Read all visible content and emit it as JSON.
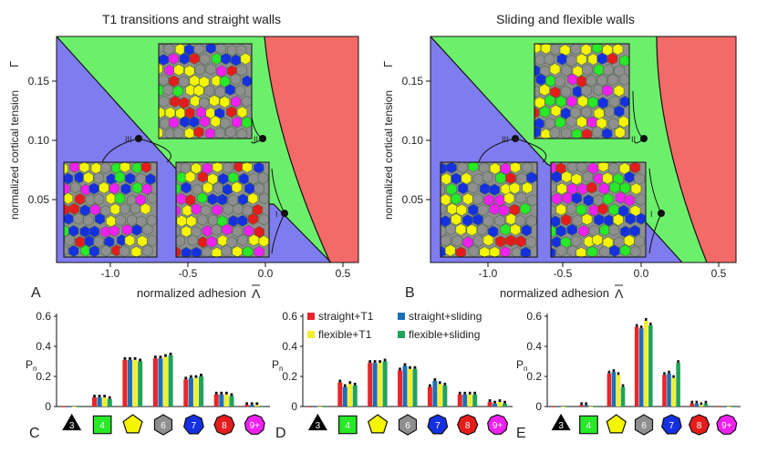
{
  "panels": {
    "A": {
      "title": "T1 transitions and straight walls",
      "letter": "A",
      "xlabel": "normalized adhesion",
      "xsymbol": "Λ",
      "ylabel": "normalized cortical tension",
      "ysymbol": "Γ",
      "xticks": [
        "-1.0",
        "-0.5",
        "0.0",
        "0.5"
      ],
      "yticks": [
        "0.15",
        "0.10",
        "0.05"
      ],
      "markers": [
        "III",
        "II",
        "I"
      ]
    },
    "B": {
      "title": "Sliding and flexible walls",
      "letter": "B",
      "xlabel": "normalized adhesion",
      "xsymbol": "Λ",
      "ylabel": "normalized cortical tension",
      "ysymbol": "Γ",
      "xticks": [
        "-1.0",
        "-0.5",
        "0.0",
        "0.5"
      ],
      "yticks": [
        "0.15",
        "0.10",
        "0.05"
      ],
      "markers": [
        "III",
        "II",
        "I"
      ]
    }
  },
  "colors": {
    "blue_region": "#7f7cf0",
    "green_region": "#6cf06c",
    "red_region": "#f46a68",
    "cell_gray": "#8f8f8f",
    "cell_yellow": "#f5f500",
    "cell_blue": "#1530e0",
    "cell_red": "#e51c1c",
    "cell_green": "#27e927",
    "cell_magenta": "#f020f0",
    "bar_red": "#e8262a",
    "bar_blue": "#1f6fb5",
    "bar_yellow": "#f3ee2f",
    "bar_green": "#21a35a"
  },
  "legend": [
    "straight+T1",
    "straight+sliding",
    "flexible+T1",
    "flexible+sliding"
  ],
  "polygon_labels": [
    "3",
    "4",
    "",
    "6",
    "7",
    "8",
    "9+"
  ],
  "chart_data": [
    {
      "type": "bar",
      "panel": "C",
      "ylabel": "Pn",
      "ylim": [
        0,
        0.6
      ],
      "yticks": [
        "0.6",
        "0.4",
        "0.2",
        "0"
      ],
      "categories": [
        "3",
        "4",
        "5",
        "6",
        "7",
        "8",
        "9+"
      ],
      "series": [
        {
          "name": "straight+T1",
          "values": [
            0.0,
            0.06,
            0.31,
            0.32,
            0.18,
            0.08,
            0.01
          ]
        },
        {
          "name": "straight+sliding",
          "values": [
            0.0,
            0.06,
            0.31,
            0.32,
            0.19,
            0.08,
            0.01
          ]
        },
        {
          "name": "flexible+T1",
          "values": [
            0.0,
            0.06,
            0.31,
            0.33,
            0.19,
            0.08,
            0.01
          ]
        },
        {
          "name": "flexible+sliding",
          "values": [
            0.0,
            0.05,
            0.3,
            0.34,
            0.2,
            0.07,
            0.0
          ]
        }
      ]
    },
    {
      "type": "bar",
      "panel": "D",
      "ylabel": "Pn",
      "ylim": [
        0,
        0.6
      ],
      "yticks": [
        "0.6",
        "0.4",
        "0.2",
        "0"
      ],
      "categories": [
        "3",
        "4",
        "5",
        "6",
        "7",
        "8",
        "9+"
      ],
      "series": [
        {
          "name": "straight+T1",
          "values": [
            0.0,
            0.16,
            0.29,
            0.24,
            0.13,
            0.08,
            0.03
          ]
        },
        {
          "name": "straight+sliding",
          "values": [
            0.0,
            0.13,
            0.29,
            0.27,
            0.17,
            0.08,
            0.02
          ]
        },
        {
          "name": "flexible+T1",
          "values": [
            0.0,
            0.15,
            0.29,
            0.25,
            0.15,
            0.08,
            0.03
          ]
        },
        {
          "name": "flexible+sliding",
          "values": [
            0.0,
            0.14,
            0.3,
            0.25,
            0.14,
            0.08,
            0.02
          ]
        }
      ]
    },
    {
      "type": "bar",
      "panel": "E",
      "ylabel": "Pn",
      "ylim": [
        0,
        0.6
      ],
      "yticks": [
        "0.6",
        "0.4",
        "0.2",
        "0"
      ],
      "categories": [
        "3",
        "4",
        "5",
        "6",
        "7",
        "8",
        "9+"
      ],
      "series": [
        {
          "name": "straight+T1",
          "values": [
            0.0,
            0.01,
            0.22,
            0.53,
            0.21,
            0.02,
            0.0
          ]
        },
        {
          "name": "straight+sliding",
          "values": [
            0.0,
            0.01,
            0.23,
            0.52,
            0.22,
            0.02,
            0.0
          ]
        },
        {
          "name": "flexible+T1",
          "values": [
            0.0,
            0.0,
            0.21,
            0.57,
            0.19,
            0.01,
            0.0
          ]
        },
        {
          "name": "flexible+sliding",
          "values": [
            0.0,
            0.0,
            0.13,
            0.54,
            0.29,
            0.02,
            0.0
          ]
        }
      ]
    }
  ]
}
